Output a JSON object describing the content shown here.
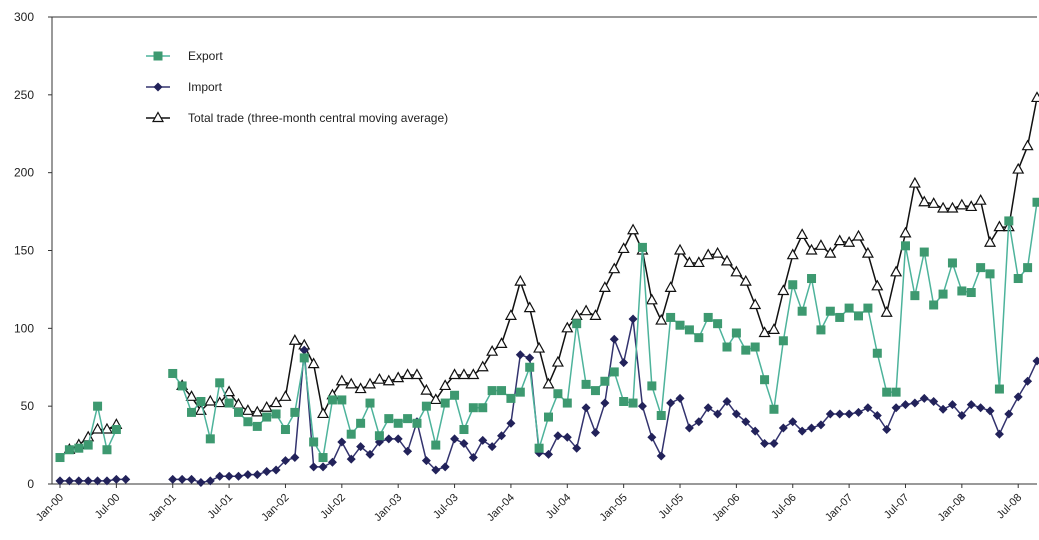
{
  "chart_data": {
    "type": "line",
    "title": "",
    "xlabel": "",
    "ylabel": "",
    "ylim": [
      0,
      300
    ],
    "yticks": [
      "0",
      "50",
      "100",
      "150",
      "200",
      "250",
      "300"
    ],
    "ytick_values": [
      0,
      50,
      100,
      150,
      200,
      250,
      300
    ],
    "xtick_labels": [
      "Jan-00",
      "Jul-00",
      "Jan-01",
      "Jul-01",
      "Jan-02",
      "Jul-02",
      "Jan-03",
      "Jul-03",
      "Jan-04",
      "Jul-04",
      "Jan-05",
      "Jul-05",
      "Jan-06",
      "Jul-06",
      "Jan-07",
      "Jul-07",
      "Jan-08",
      "Jul-08"
    ],
    "x_start": "2000-01",
    "grid": false,
    "legend_position": "top-left",
    "series": [
      {
        "name": "Export",
        "color": "#3d9970",
        "line_color": "#4db39b",
        "marker": "square",
        "values": [
          17,
          22,
          23,
          25,
          50,
          22,
          35,
          null,
          null,
          null,
          null,
          null,
          71,
          63,
          46,
          53,
          29,
          65,
          52,
          46,
          40,
          37,
          43,
          45,
          35,
          46,
          81,
          27,
          17,
          54,
          54,
          32,
          39,
          52,
          31,
          42,
          39,
          42,
          39,
          50,
          25,
          52,
          57,
          35,
          49,
          49,
          60,
          60,
          55,
          59,
          75,
          23,
          43,
          58,
          52,
          103,
          64,
          60,
          66,
          72,
          53,
          52,
          152,
          63,
          44,
          107,
          102,
          99,
          94,
          107,
          103,
          88,
          97,
          86,
          88,
          67,
          48,
          92,
          128,
          111,
          132,
          99,
          111,
          107,
          113,
          108,
          113,
          84,
          59,
          59,
          153,
          121,
          149,
          115,
          122,
          142,
          124,
          123,
          139,
          135,
          61,
          169,
          132,
          139,
          181
        ]
      },
      {
        "name": "Import",
        "color": "#22225a",
        "line_color": "#33336e",
        "marker": "diamond",
        "values": [
          2,
          2,
          2,
          2,
          2,
          2,
          3,
          3,
          null,
          null,
          null,
          null,
          3,
          3,
          3,
          1,
          2,
          5,
          5,
          5,
          6,
          6,
          8,
          9,
          15,
          17,
          86,
          11,
          11,
          14,
          27,
          16,
          24,
          19,
          27,
          29,
          29,
          21,
          40,
          15,
          9,
          11,
          29,
          26,
          17,
          28,
          24,
          31,
          39,
          83,
          81,
          20,
          19,
          31,
          30,
          23,
          49,
          33,
          52,
          93,
          78,
          106,
          50,
          30,
          18,
          52,
          55,
          36,
          40,
          49,
          45,
          53,
          45,
          40,
          34,
          26,
          26,
          36,
          40,
          34,
          36,
          38,
          45,
          45,
          45,
          46,
          49,
          44,
          35,
          49,
          51,
          52,
          55,
          53,
          48,
          51,
          44,
          51,
          49,
          47,
          32,
          45,
          56,
          66,
          79
        ]
      },
      {
        "name": "Total trade (three-month central moving average)",
        "color": "#111111",
        "line_color": "#111111",
        "marker": "triangle-open",
        "values": [
          null,
          22,
          25,
          30,
          35,
          35,
          38,
          null,
          null,
          null,
          null,
          null,
          null,
          63,
          56,
          47,
          53,
          52,
          59,
          51,
          47,
          46,
          49,
          52,
          56,
          92,
          89,
          77,
          45,
          57,
          66,
          64,
          61,
          64,
          67,
          66,
          68,
          70,
          70,
          60,
          54,
          63,
          70,
          70,
          70,
          75,
          85,
          90,
          108,
          130,
          113,
          87,
          64,
          78,
          100,
          108,
          111,
          108,
          126,
          138,
          151,
          163,
          150,
          118,
          105,
          126,
          150,
          142,
          142,
          147,
          148,
          143,
          136,
          130,
          115,
          97,
          99,
          124,
          147,
          160,
          150,
          153,
          148,
          156,
          155,
          159,
          148,
          127,
          110,
          136,
          161,
          193,
          181,
          180,
          177,
          177,
          179,
          178,
          182,
          155,
          165,
          165,
          202,
          217,
          248
        ]
      }
    ]
  }
}
